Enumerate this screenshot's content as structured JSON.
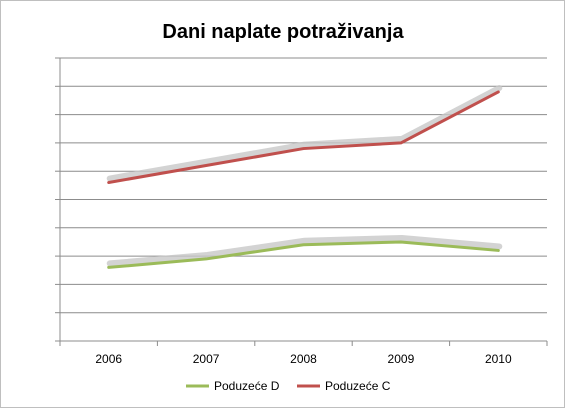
{
  "chart_data": {
    "type": "line",
    "title": "Dani naplate potraživanja",
    "xlabel": "",
    "ylabel": "",
    "categories": [
      "2006",
      "2007",
      "2008",
      "2009",
      "2010"
    ],
    "ylim": [
      0,
      10
    ],
    "y_ticks_labeled": false,
    "grid": true,
    "legend_position": "bottom",
    "series": [
      {
        "name": "Poduzeće D",
        "color": "#9bbb59",
        "values": [
          2.6,
          2.9,
          3.4,
          3.5,
          3.2
        ]
      },
      {
        "name": "Poduzeće C",
        "color": "#c0504d",
        "values": [
          5.6,
          6.2,
          6.8,
          7.0,
          8.8
        ]
      }
    ]
  }
}
